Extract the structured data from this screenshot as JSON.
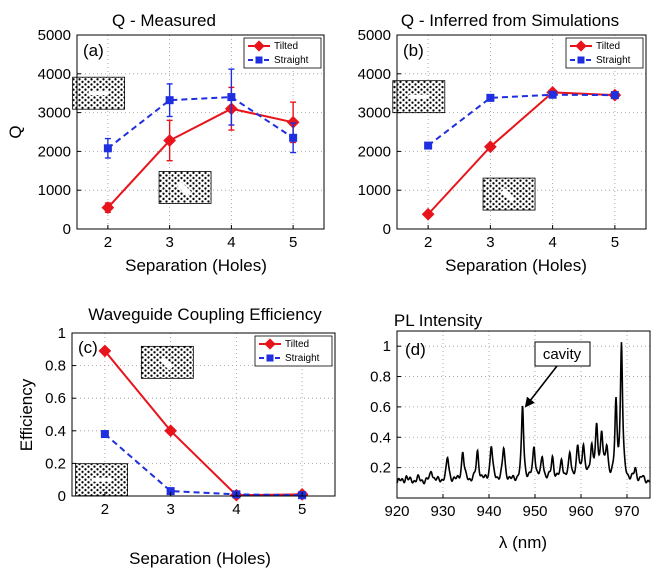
{
  "chart_data": [
    {
      "id": "a",
      "type": "line",
      "title": "Q - Measured",
      "panel_label": "(a)",
      "xlabel": "Separation (Holes)",
      "ylabel": "Q",
      "xlim": [
        1.5,
        5.5
      ],
      "ylim": [
        0,
        5000
      ],
      "xticks": [
        2,
        3,
        4,
        5
      ],
      "yticks": [
        0,
        1000,
        2000,
        3000,
        4000,
        5000
      ],
      "grid": true,
      "legend_position": "top-right",
      "series": [
        {
          "name": "Tilted",
          "color": "#e8141c",
          "dashed": false,
          "marker": "diamond",
          "x": [
            2,
            3,
            4,
            5
          ],
          "y": [
            550,
            2280,
            3100,
            2750
          ],
          "err": [
            120,
            520,
            550,
            520
          ]
        },
        {
          "name": "Straight",
          "color": "#1f2fe0",
          "dashed": true,
          "marker": "square",
          "x": [
            2,
            3,
            4,
            5
          ],
          "y": [
            2080,
            3320,
            3400,
            2350
          ],
          "err": [
            250,
            420,
            720,
            380
          ]
        }
      ],
      "insets": [
        {
          "pattern": "straight",
          "x": 1.85,
          "y": 3500
        },
        {
          "pattern": "tilted",
          "x": 3.25,
          "y": 1070
        }
      ]
    },
    {
      "id": "b",
      "type": "line",
      "title": "Q - Inferred from Simulations",
      "panel_label": "(b)",
      "xlabel": "Separation (Holes)",
      "ylabel": "",
      "xlim": [
        1.5,
        5.5
      ],
      "ylim": [
        0,
        5000
      ],
      "xticks": [
        2,
        3,
        4,
        5
      ],
      "yticks": [
        0,
        1000,
        2000,
        3000,
        4000,
        5000
      ],
      "grid": true,
      "legend_position": "top-right",
      "series": [
        {
          "name": "Tilted",
          "color": "#e8141c",
          "dashed": false,
          "marker": "diamond",
          "x": [
            2,
            3,
            4,
            5
          ],
          "y": [
            380,
            2120,
            3520,
            3450
          ]
        },
        {
          "name": "Straight",
          "color": "#1f2fe0",
          "dashed": true,
          "marker": "square",
          "x": [
            2,
            3,
            4,
            5
          ],
          "y": [
            2150,
            3380,
            3460,
            3450
          ]
        }
      ],
      "insets": [
        {
          "pattern": "straight",
          "x": 1.85,
          "y": 3410
        },
        {
          "pattern": "tilted",
          "x": 3.3,
          "y": 900
        }
      ]
    },
    {
      "id": "c",
      "type": "line",
      "title": "Waveguide Coupling Efficiency",
      "panel_label": "(c)",
      "xlabel": "Separation (Holes)",
      "ylabel": "Efficiency",
      "xlim": [
        1.5,
        5.5
      ],
      "ylim": [
        0,
        1
      ],
      "xticks": [
        2,
        3,
        4,
        5
      ],
      "yticks": [
        0,
        0.2,
        0.4,
        0.6,
        0.8,
        1
      ],
      "grid": true,
      "legend_position": "top-right",
      "series": [
        {
          "name": "Tilted",
          "color": "#e8141c",
          "dashed": false,
          "marker": "diamond",
          "x": [
            2,
            3,
            4,
            5
          ],
          "y": [
            0.89,
            0.4,
            0.005,
            0.01
          ]
        },
        {
          "name": "Straight",
          "color": "#1f2fe0",
          "dashed": true,
          "marker": "square",
          "x": [
            2,
            3,
            4,
            5
          ],
          "y": [
            0.38,
            0.03,
            0.01,
            0.005
          ]
        }
      ],
      "insets": [
        {
          "pattern": "tilted",
          "x": 2.95,
          "y": 0.82
        },
        {
          "pattern": "straight",
          "x": 1.95,
          "y": 0.1
        }
      ]
    },
    {
      "id": "d",
      "type": "line",
      "title": "PL Intensity",
      "panel_label": "(d)",
      "xlabel": "λ (nm)",
      "ylabel": "",
      "xlim": [
        920,
        975
      ],
      "ylim": [
        0,
        1.1
      ],
      "xticks": [
        920,
        930,
        940,
        950,
        960,
        970
      ],
      "yticks": [
        0.2,
        0.4,
        0.6,
        0.8,
        1
      ],
      "grid": true,
      "baseline": 0.11,
      "peaks": [
        {
          "x": 922.0,
          "y": 0.14
        },
        {
          "x": 924.5,
          "y": 0.13
        },
        {
          "x": 927.5,
          "y": 0.18
        },
        {
          "x": 931.0,
          "y": 0.26
        },
        {
          "x": 934.3,
          "y": 0.3
        },
        {
          "x": 937.5,
          "y": 0.3
        },
        {
          "x": 940.5,
          "y": 0.34
        },
        {
          "x": 943.2,
          "y": 0.32
        },
        {
          "x": 947.3,
          "y": 0.6
        },
        {
          "x": 949.8,
          "y": 0.33
        },
        {
          "x": 951.6,
          "y": 0.26
        },
        {
          "x": 953.8,
          "y": 0.26
        },
        {
          "x": 955.8,
          "y": 0.24
        },
        {
          "x": 957.6,
          "y": 0.28
        },
        {
          "x": 959.3,
          "y": 0.31
        },
        {
          "x": 960.5,
          "y": 0.33
        },
        {
          "x": 962.3,
          "y": 0.32
        },
        {
          "x": 963.4,
          "y": 0.42
        },
        {
          "x": 964.5,
          "y": 0.4
        },
        {
          "x": 965.6,
          "y": 0.3
        },
        {
          "x": 967.6,
          "y": 0.59
        },
        {
          "x": 968.8,
          "y": 1.0
        },
        {
          "x": 971.8,
          "y": 0.18
        },
        {
          "x": 973.3,
          "y": 0.13
        }
      ],
      "annotation": {
        "text": "cavity",
        "points_to": {
          "x": 947.3,
          "y": 0.6
        }
      }
    }
  ]
}
